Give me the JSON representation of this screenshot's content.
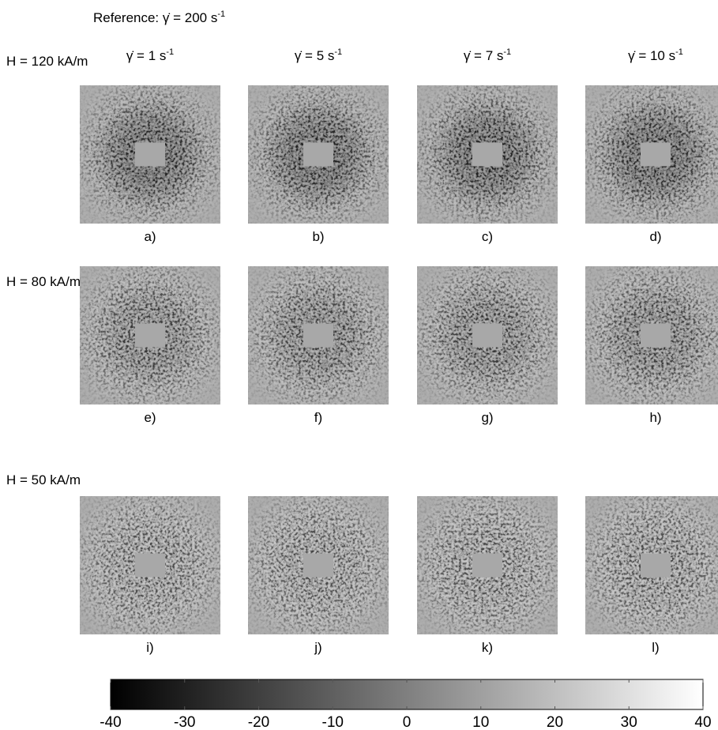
{
  "chart_data": {
    "type": "image-grid",
    "reference": {
      "text": "Reference:  γ̇ = 200 s",
      "sup": "-1"
    },
    "columns": [
      {
        "text": "γ̇ = 1 s",
        "sup": "-1"
      },
      {
        "text": "γ̇ = 5 s",
        "sup": "-1"
      },
      {
        "text": "γ̇ = 7 s",
        "sup": "-1"
      },
      {
        "text": "γ̇ = 10 s",
        "sup": "-1"
      }
    ],
    "rows": [
      "H = 120 kA/m",
      "H = 80 kA/m",
      "H = 50 kA/m"
    ],
    "panel_labels": [
      [
        "a)",
        "b)",
        "c)",
        "d)"
      ],
      [
        "e)",
        "f)",
        "g)",
        "h)"
      ],
      [
        "i)",
        "j)",
        "k)",
        "l)"
      ]
    ],
    "colorbar": {
      "lim": [
        -40,
        40
      ],
      "ticks": [
        -40,
        -30,
        -20,
        -10,
        0,
        10,
        20,
        30,
        40
      ],
      "colors": [
        "#000000",
        "#ffffff"
      ]
    }
  }
}
